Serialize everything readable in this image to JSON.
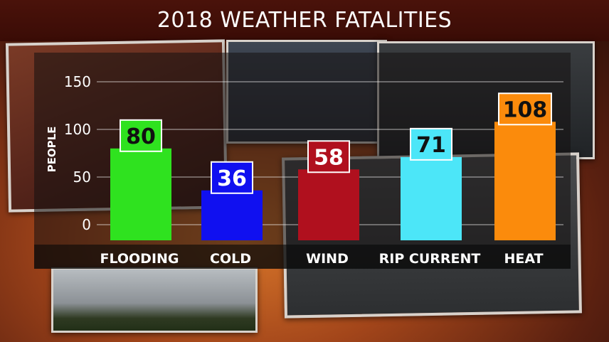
{
  "header": {
    "title": "2018 WEATHER FATALITIES"
  },
  "chart_data": {
    "type": "bar",
    "title": "2018 WEATHER FATALITIES",
    "xlabel": "",
    "ylabel": "PEOPLE",
    "categories": [
      "FLOODING",
      "COLD",
      "WIND",
      "RIP CURRENT",
      "HEAT"
    ],
    "values": [
      80,
      36,
      58,
      71,
      108
    ],
    "ylim": [
      0,
      150
    ],
    "yticks": [
      0,
      50,
      100,
      150
    ],
    "grid": true,
    "legend": "none",
    "colors": [
      "#2fe21f",
      "#1010f0",
      "#b0101e",
      "#4ce6f8",
      "#fb8b0c"
    ],
    "label_text_colors": [
      "#111111",
      "#ffffff",
      "#ffffff",
      "#111111",
      "#111111"
    ]
  }
}
